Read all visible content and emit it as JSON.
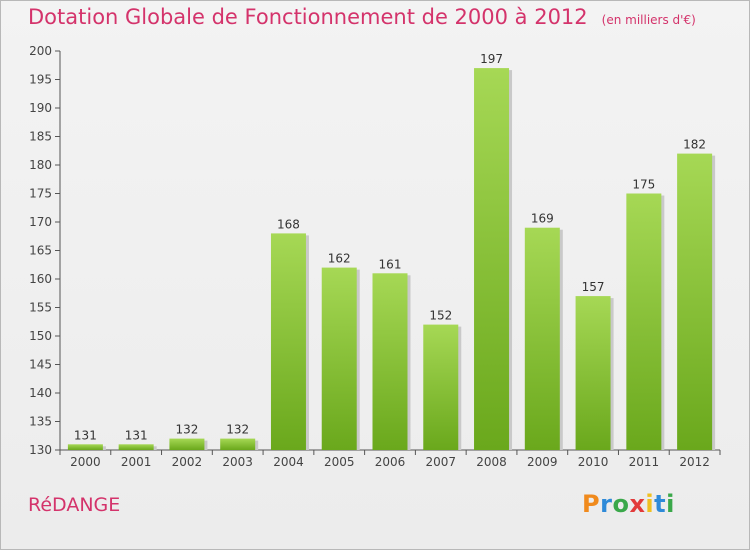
{
  "header": {
    "title": "Dotation Globale de Fonctionnement de 2000 à 2012",
    "subtitle": "(en milliers d'€)"
  },
  "footer": {
    "commune": "RéDANGE",
    "logo_text": "Proxiti",
    "logo_colors": [
      "#f08a1c",
      "#2e8ad8",
      "#3aa84a",
      "#e23a3a",
      "#f0c020",
      "#2e8ad8",
      "#3aa84a"
    ]
  },
  "colors": {
    "bar_light": "#a6d855",
    "bar_dark": "#6aa81c",
    "accent": "#d4336b",
    "axis": "#555555"
  },
  "chart_data": {
    "type": "bar",
    "categories": [
      "2000",
      "2001",
      "2002",
      "2003",
      "2004",
      "2005",
      "2006",
      "2007",
      "2008",
      "2009",
      "2010",
      "2011",
      "2012"
    ],
    "values": [
      131,
      131,
      132,
      132,
      168,
      162,
      161,
      152,
      197,
      169,
      157,
      175,
      182
    ],
    "title": "Dotation Globale de Fonctionnement de 2000 à 2012",
    "subtitle": "(en milliers d'€)",
    "xlabel": "",
    "ylabel": "",
    "ylim": [
      130,
      200
    ],
    "yticks": [
      130,
      135,
      140,
      145,
      150,
      155,
      160,
      165,
      170,
      175,
      180,
      185,
      190,
      195,
      200
    ],
    "grid": false,
    "data_labels": true
  }
}
